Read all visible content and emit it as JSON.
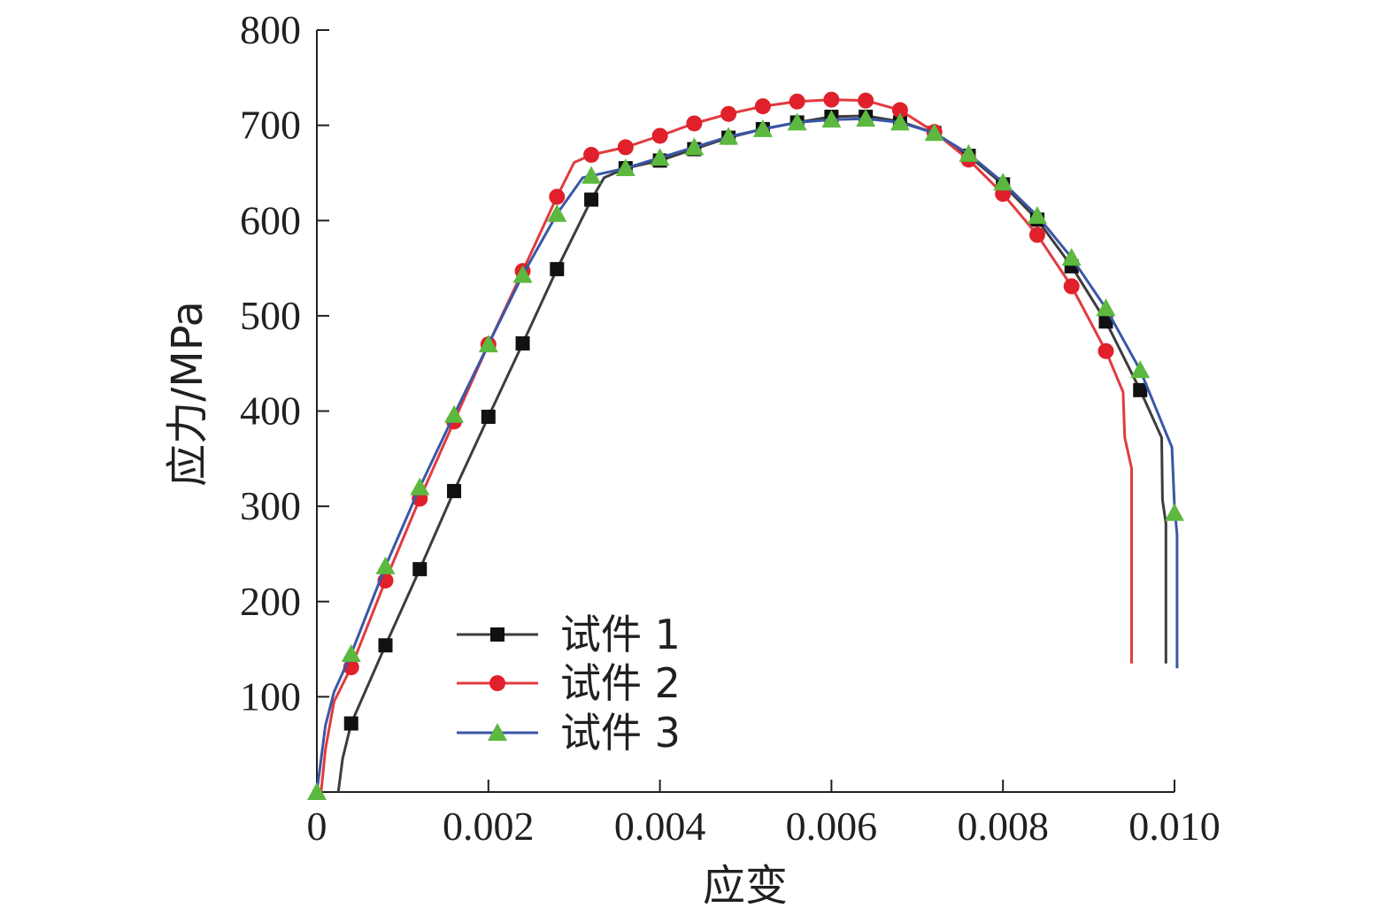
{
  "chart_data": {
    "type": "line",
    "xlabel": "应变",
    "ylabel": "应力/MPa",
    "xlim": [
      0,
      0.01
    ],
    "ylim": [
      0,
      800
    ],
    "xticks": [
      0,
      0.002,
      0.004,
      0.006,
      0.008,
      0.01
    ],
    "xtick_labels": [
      "0",
      "0.002",
      "0.004",
      "0.006",
      "0.008",
      "0.010"
    ],
    "yticks": [
      100,
      200,
      300,
      400,
      500,
      600,
      700,
      800
    ],
    "ytick_labels": [
      "100",
      "200",
      "300",
      "400",
      "500",
      "600",
      "700",
      "800"
    ],
    "grid": false,
    "legend_position": "bottom-left",
    "series": [
      {
        "name": "试件 1",
        "color": "#3d3d3d",
        "marker": "square",
        "marker_color": "#111111",
        "markers": [
          [
            0.0004,
            72
          ],
          [
            0.0008,
            154
          ],
          [
            0.0012,
            234
          ],
          [
            0.0016,
            316
          ],
          [
            0.002,
            394
          ],
          [
            0.0024,
            471
          ],
          [
            0.0028,
            549
          ],
          [
            0.0032,
            622
          ],
          [
            0.0036,
            655
          ],
          [
            0.004,
            663
          ],
          [
            0.0044,
            675
          ],
          [
            0.0048,
            687
          ],
          [
            0.0052,
            696
          ],
          [
            0.0056,
            703
          ],
          [
            0.006,
            709
          ],
          [
            0.0064,
            709
          ],
          [
            0.0068,
            703
          ],
          [
            0.0072,
            692
          ],
          [
            0.0076,
            668
          ],
          [
            0.008,
            638
          ],
          [
            0.0084,
            601
          ],
          [
            0.0088,
            552
          ],
          [
            0.0092,
            494
          ],
          [
            0.0096,
            422
          ]
        ],
        "curve": [
          [
            0.00025,
            0
          ],
          [
            0.0003,
            35
          ],
          [
            0.0004,
            72
          ],
          [
            0.0008,
            154
          ],
          [
            0.0012,
            234
          ],
          [
            0.0016,
            316
          ],
          [
            0.002,
            394
          ],
          [
            0.0024,
            471
          ],
          [
            0.0028,
            549
          ],
          [
            0.0032,
            622
          ],
          [
            0.00335,
            645
          ],
          [
            0.0036,
            655
          ],
          [
            0.004,
            663
          ],
          [
            0.0044,
            675
          ],
          [
            0.0048,
            687
          ],
          [
            0.0052,
            696
          ],
          [
            0.0056,
            703
          ],
          [
            0.006,
            709
          ],
          [
            0.0064,
            710
          ],
          [
            0.0068,
            704
          ],
          [
            0.0072,
            692
          ],
          [
            0.0076,
            668
          ],
          [
            0.008,
            638
          ],
          [
            0.0084,
            601
          ],
          [
            0.0088,
            552
          ],
          [
            0.0092,
            494
          ],
          [
            0.0096,
            422
          ],
          [
            0.00985,
            372
          ],
          [
            0.00986,
            307
          ],
          [
            0.0099,
            282
          ],
          [
            0.0099,
            135
          ]
        ]
      },
      {
        "name": "试件 2",
        "color": "#e23b3f",
        "marker": "circle",
        "marker_color": "#e0202a",
        "markers": [
          [
            0.0004,
            131
          ],
          [
            0.0008,
            222
          ],
          [
            0.0012,
            308
          ],
          [
            0.0016,
            389
          ],
          [
            0.002,
            470
          ],
          [
            0.0024,
            547
          ],
          [
            0.0028,
            625
          ],
          [
            0.0032,
            669
          ],
          [
            0.0036,
            677
          ],
          [
            0.004,
            689
          ],
          [
            0.0044,
            702
          ],
          [
            0.0048,
            712
          ],
          [
            0.0052,
            720
          ],
          [
            0.0056,
            725
          ],
          [
            0.006,
            727
          ],
          [
            0.0064,
            726
          ],
          [
            0.0068,
            716
          ],
          [
            0.0072,
            693
          ],
          [
            0.0076,
            664
          ],
          [
            0.008,
            628
          ],
          [
            0.0084,
            585
          ],
          [
            0.0088,
            531
          ],
          [
            0.0092,
            463
          ]
        ],
        "curve": [
          [
            5e-05,
            0
          ],
          [
            0.0001,
            45
          ],
          [
            0.0002,
            95
          ],
          [
            0.0004,
            131
          ],
          [
            0.0008,
            222
          ],
          [
            0.0012,
            308
          ],
          [
            0.0016,
            389
          ],
          [
            0.002,
            470
          ],
          [
            0.0024,
            547
          ],
          [
            0.0028,
            625
          ],
          [
            0.003,
            661
          ],
          [
            0.0032,
            669
          ],
          [
            0.0036,
            677
          ],
          [
            0.004,
            689
          ],
          [
            0.0044,
            702
          ],
          [
            0.0048,
            712
          ],
          [
            0.0052,
            720
          ],
          [
            0.0056,
            725
          ],
          [
            0.006,
            727
          ],
          [
            0.0064,
            726
          ],
          [
            0.0068,
            716
          ],
          [
            0.0072,
            693
          ],
          [
            0.0076,
            664
          ],
          [
            0.008,
            628
          ],
          [
            0.0084,
            585
          ],
          [
            0.0088,
            531
          ],
          [
            0.0092,
            463
          ],
          [
            0.0094,
            420
          ],
          [
            0.00942,
            372
          ],
          [
            0.0095,
            340
          ],
          [
            0.0095,
            135
          ]
        ]
      },
      {
        "name": "试件 3",
        "color": "#3a57a6",
        "marker": "triangle",
        "marker_color": "#5cb83e",
        "markers": [
          [
            0,
            0
          ],
          [
            0.0004,
            145
          ],
          [
            0.0008,
            237
          ],
          [
            0.0012,
            320
          ],
          [
            0.0016,
            396
          ],
          [
            0.002,
            470
          ],
          [
            0.0024,
            543
          ],
          [
            0.0028,
            607
          ],
          [
            0.0032,
            647
          ],
          [
            0.0036,
            655
          ],
          [
            0.004,
            666
          ],
          [
            0.0044,
            677
          ],
          [
            0.0048,
            688
          ],
          [
            0.0052,
            696
          ],
          [
            0.0056,
            703
          ],
          [
            0.006,
            706
          ],
          [
            0.0064,
            707
          ],
          [
            0.0068,
            703
          ],
          [
            0.0072,
            692
          ],
          [
            0.0076,
            670
          ],
          [
            0.008,
            640
          ],
          [
            0.0084,
            605
          ],
          [
            0.0088,
            561
          ],
          [
            0.0092,
            508
          ],
          [
            0.0096,
            443
          ],
          [
            0.01,
            293
          ]
        ],
        "curve": [
          [
            0,
            0
          ],
          [
            0.0001,
            70
          ],
          [
            0.0002,
            105
          ],
          [
            0.0004,
            145
          ],
          [
            0.0008,
            237
          ],
          [
            0.0012,
            320
          ],
          [
            0.0016,
            396
          ],
          [
            0.002,
            470
          ],
          [
            0.0024,
            543
          ],
          [
            0.0028,
            607
          ],
          [
            0.0031,
            645
          ],
          [
            0.0032,
            647
          ],
          [
            0.0036,
            655
          ],
          [
            0.004,
            666
          ],
          [
            0.0044,
            677
          ],
          [
            0.0048,
            688
          ],
          [
            0.0052,
            696
          ],
          [
            0.0056,
            703
          ],
          [
            0.006,
            706
          ],
          [
            0.0064,
            707
          ],
          [
            0.0068,
            703
          ],
          [
            0.0072,
            692
          ],
          [
            0.0076,
            670
          ],
          [
            0.008,
            640
          ],
          [
            0.0084,
            605
          ],
          [
            0.0088,
            561
          ],
          [
            0.0092,
            508
          ],
          [
            0.0096,
            443
          ],
          [
            0.00997,
            362
          ],
          [
            0.01,
            300
          ],
          [
            0.01003,
            270
          ],
          [
            0.01003,
            130
          ]
        ]
      }
    ]
  }
}
